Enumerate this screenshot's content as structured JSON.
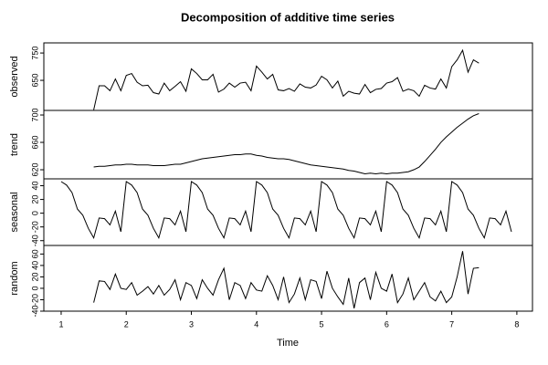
{
  "chart_data": {
    "type": "line",
    "title": "Decomposition of additive time series",
    "xlabel": "Time",
    "color": "#000000",
    "x": [
      1,
      1.083,
      1.167,
      1.25,
      1.333,
      1.417,
      1.5,
      1.583,
      1.667,
      1.75,
      1.833,
      1.917,
      2,
      2.083,
      2.167,
      2.25,
      2.333,
      2.417,
      2.5,
      2.583,
      2.667,
      2.75,
      2.833,
      2.917,
      3,
      3.083,
      3.167,
      3.25,
      3.333,
      3.417,
      3.5,
      3.583,
      3.667,
      3.75,
      3.833,
      3.917,
      4,
      4.083,
      4.167,
      4.25,
      4.333,
      4.417,
      4.5,
      4.583,
      4.667,
      4.75,
      4.833,
      4.917,
      5,
      5.083,
      5.167,
      5.25,
      5.333,
      5.417,
      5.5,
      5.583,
      5.667,
      5.75,
      5.833,
      5.917,
      6,
      6.083,
      6.167,
      6.25,
      6.333,
      6.417,
      6.5,
      6.583,
      6.667,
      6.75,
      6.833,
      6.917,
      7,
      7.083,
      7.167,
      7.25,
      7.333,
      7.417,
      7.5,
      7.583,
      7.667,
      7.75,
      7.833,
      7.917
    ],
    "xlim": [
      0.734,
      8.24
    ],
    "xticks": [
      1,
      2,
      3,
      4,
      5,
      6,
      7,
      8
    ],
    "series": [
      {
        "name": "observed",
        "ylim": [
          540,
          787
        ],
        "yticks": [
          650,
          750
        ],
        "values": [
          null,
          null,
          null,
          null,
          null,
          null,
          542,
          630,
          630,
          612,
          655,
          612,
          668,
          675,
          643,
          630,
          632,
          605,
          600,
          640,
          612,
          628,
          645,
          610,
          692,
          675,
          652,
          652,
          672,
          607,
          618,
          640,
          625,
          640,
          643,
          612,
          702,
          680,
          655,
          672,
          615,
          612,
          620,
          610,
          637,
          625,
          622,
          633,
          665,
          652,
          622,
          647,
          592,
          610,
          603,
          600,
          635,
          605,
          617,
          620,
          640,
          645,
          660,
          610,
          618,
          612,
          592,
          632,
          622,
          618,
          655,
          622,
          700,
          725,
          760,
          680,
          725,
          713,
          null,
          null,
          null,
          null,
          null,
          null
        ]
      },
      {
        "name": "trend",
        "ylim": [
          606.7,
          706.7
        ],
        "yticks": [
          620,
          660,
          700
        ],
        "values": [
          null,
          null,
          null,
          null,
          null,
          null,
          624,
          625,
          625,
          626,
          627,
          627,
          628,
          628,
          627,
          627,
          627,
          626,
          626,
          626,
          627,
          628,
          628,
          630,
          632,
          634,
          636,
          637,
          638,
          639,
          640,
          641,
          642,
          642,
          643,
          643,
          641,
          640,
          638,
          637,
          636,
          636,
          635,
          633,
          631,
          629,
          627,
          626,
          625,
          624,
          623,
          622,
          621,
          619,
          618,
          616,
          614,
          615,
          614,
          615,
          614,
          615,
          615,
          616,
          617,
          620,
          624,
          632,
          641,
          650,
          660,
          668,
          675,
          682,
          688,
          694,
          699,
          702,
          null,
          null,
          null,
          null,
          null,
          null
        ]
      },
      {
        "name": "seasonal",
        "ylim": [
          -47,
          50
        ],
        "yticks": [
          -40,
          -20,
          0,
          20,
          40
        ],
        "values": [
          46,
          41,
          30,
          6,
          -3,
          -22,
          -36,
          -7,
          -8,
          -17,
          3,
          -27,
          46,
          41,
          30,
          6,
          -3,
          -22,
          -36,
          -7,
          -8,
          -17,
          3,
          -27,
          46,
          41,
          30,
          6,
          -3,
          -22,
          -36,
          -7,
          -8,
          -17,
          3,
          -27,
          46,
          41,
          30,
          6,
          -3,
          -22,
          -36,
          -7,
          -8,
          -17,
          3,
          -27,
          46,
          41,
          30,
          6,
          -3,
          -22,
          -36,
          -7,
          -8,
          -17,
          3,
          -27,
          46,
          41,
          30,
          6,
          -3,
          -22,
          -36,
          -7,
          -8,
          -17,
          3,
          -27,
          46,
          41,
          30,
          6,
          -3,
          -22,
          -36,
          -7,
          -8,
          -17,
          3,
          -27
        ]
      },
      {
        "name": "random",
        "ylim": [
          -40,
          75
        ],
        "yticks": [
          -40,
          -20,
          0,
          20,
          40,
          60
        ],
        "values": [
          null,
          null,
          null,
          null,
          null,
          null,
          -25,
          13,
          12,
          -2,
          25,
          0,
          -2,
          10,
          -12,
          -5,
          3,
          -10,
          5,
          -12,
          -2,
          15,
          -20,
          10,
          5,
          -18,
          15,
          0,
          -12,
          15,
          35,
          -20,
          10,
          5,
          -18,
          10,
          -3,
          -5,
          22,
          5,
          -20,
          20,
          -25,
          -10,
          18,
          -20,
          15,
          12,
          -18,
          30,
          0,
          -15,
          -28,
          18,
          -35,
          10,
          18,
          -20,
          28,
          0,
          -5,
          25,
          -25,
          -10,
          18,
          -20,
          -5,
          10,
          -15,
          -22,
          -5,
          -25,
          -15,
          20,
          65,
          -10,
          35,
          36,
          null,
          null,
          null,
          null,
          null,
          null
        ]
      }
    ]
  }
}
